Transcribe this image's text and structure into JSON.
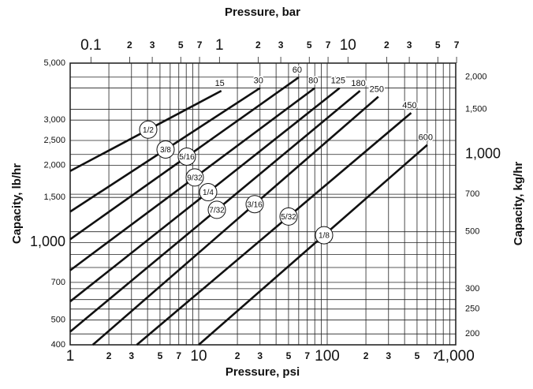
{
  "chart_data": {
    "type": "line",
    "x_label": "Pressure, psi",
    "x2_label": "Pressure, bar",
    "y_label": "Capacity, lb/hr",
    "y2_label": "Capacity, kg/hr",
    "xlog": true,
    "ylog": true,
    "grid": true,
    "color": "#111111",
    "xlim": [
      1,
      1000
    ],
    "xticks": [
      1,
      {
        "value": 2,
        "label": "2"
      },
      3,
      5,
      7,
      10,
      {
        "value": 20,
        "label": "2"
      },
      {
        "value": 30,
        "label": "3"
      },
      {
        "value": 50,
        "label": "5"
      },
      {
        "value": 70,
        "label": "7"
      },
      100,
      {
        "value": 200,
        "label": "2"
      },
      {
        "value": 300,
        "label": "3"
      },
      {
        "value": 500,
        "label": "5"
      },
      {
        "value": 700,
        "label": "7"
      },
      {
        "value": 1000,
        "label": "1,000"
      }
    ],
    "xminorticks": [
      4,
      6,
      8,
      9,
      40,
      60,
      80,
      90,
      400,
      600,
      800,
      900
    ],
    "x2lim": [
      0.06895,
      68.95
    ],
    "x2ticks": [
      0.1,
      {
        "value": 0.2,
        "label": "2"
      },
      {
        "value": 0.3,
        "label": "3"
      },
      {
        "value": 0.5,
        "label": "5"
      },
      {
        "value": 0.7,
        "label": "7"
      },
      1,
      2,
      3,
      5,
      7,
      10,
      {
        "value": 20,
        "label": "2"
      },
      {
        "value": 30,
        "label": "3"
      },
      {
        "value": 50,
        "label": "5"
      },
      {
        "value": 70,
        "label": "7"
      }
    ],
    "ylim": [
      400,
      5000
    ],
    "yticks": [
      400,
      500,
      700,
      {
        "value": 1000,
        "label": "1,000"
      },
      {
        "value": 1500,
        "label": "1,500"
      },
      {
        "value": 2000,
        "label": "2,000"
      },
      {
        "value": 2500,
        "label": "2,500"
      },
      {
        "value": 3000,
        "label": "3,000"
      },
      {
        "value": 5000,
        "label": "5,000"
      }
    ],
    "yminorticks": [
      600,
      800,
      900,
      4000
    ],
    "y2lim": [
      181.4,
      2268
    ],
    "y2ticks": [
      200,
      250,
      300,
      500,
      700,
      {
        "value": 1000,
        "label": "1,000"
      },
      {
        "value": 1500,
        "label": "1,500"
      },
      {
        "value": 2000,
        "label": "2,000"
      }
    ],
    "series": [
      {
        "name": "1/2",
        "x": [
          1,
          15
        ],
        "values": [
          1900,
          3900
        ]
      },
      {
        "name": "3/8",
        "x": [
          1,
          30
        ],
        "values": [
          1320,
          4000
        ]
      },
      {
        "name": "5/16",
        "x": [
          1,
          60
        ],
        "values": [
          1030,
          4400
        ]
      },
      {
        "name": "9/32",
        "x": [
          1,
          80
        ],
        "values": [
          780,
          4000
        ]
      },
      {
        "name": "1/4",
        "x": [
          1,
          125
        ],
        "values": [
          590,
          4000
        ]
      },
      {
        "name": "7/32",
        "x": [
          1,
          180
        ],
        "values": [
          450,
          3900
        ]
      },
      {
        "name": "3/16",
        "x": [
          1.5,
          250
        ],
        "values": [
          400,
          3700
        ]
      },
      {
        "name": "5/32",
        "x": [
          3.3,
          450
        ],
        "values": [
          400,
          3200
        ]
      },
      {
        "name": "1/8",
        "x": [
          10,
          600
        ],
        "values": [
          400,
          2400
        ]
      }
    ]
  }
}
